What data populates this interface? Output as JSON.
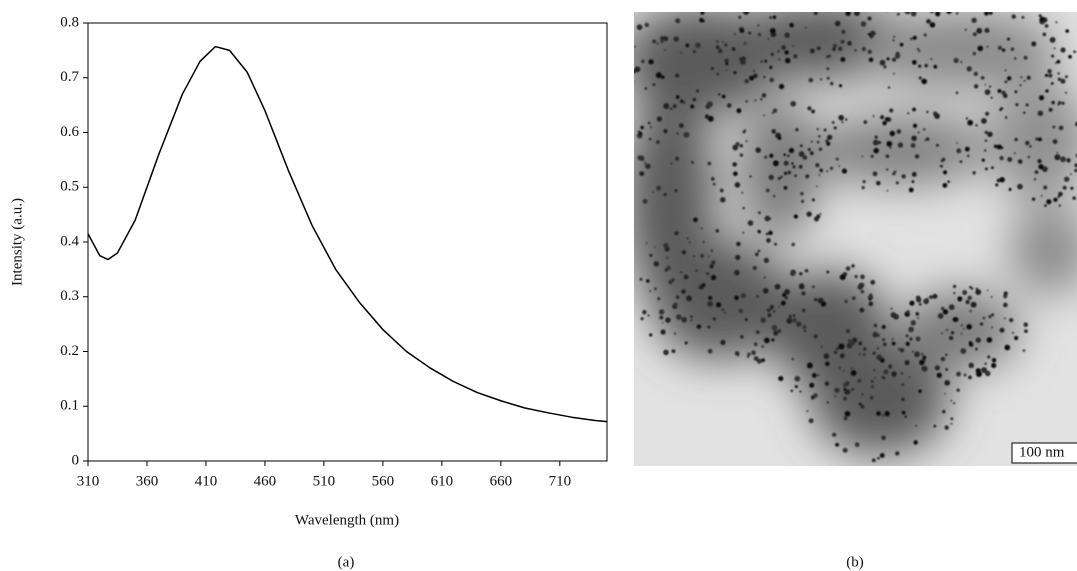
{
  "chart_data": {
    "type": "line",
    "xlabel": "Wavelength (nm)",
    "ylabel": "Intensity (a.u.)",
    "caption": "(a)",
    "x": [
      310,
      320,
      327,
      335,
      350,
      370,
      390,
      405,
      418,
      430,
      445,
      460,
      480,
      500,
      520,
      540,
      560,
      580,
      600,
      620,
      640,
      660,
      680,
      700,
      720,
      740,
      750
    ],
    "values": [
      0.415,
      0.375,
      0.368,
      0.38,
      0.44,
      0.56,
      0.67,
      0.73,
      0.757,
      0.75,
      0.71,
      0.64,
      0.53,
      0.43,
      0.35,
      0.29,
      0.24,
      0.2,
      0.17,
      0.145,
      0.125,
      0.11,
      0.097,
      0.088,
      0.08,
      0.074,
      0.072
    ],
    "color": "#000000",
    "xlim": [
      310,
      750
    ],
    "xticks": [
      310,
      360,
      410,
      460,
      510,
      560,
      610,
      660,
      710
    ],
    "ylim": [
      0,
      0.8
    ],
    "yticks": [
      0,
      0.1,
      0.2,
      0.3,
      0.4,
      0.5,
      0.6,
      0.7,
      0.8
    ]
  },
  "image": {
    "scale_bar": "100 nm",
    "caption": "(b)"
  }
}
